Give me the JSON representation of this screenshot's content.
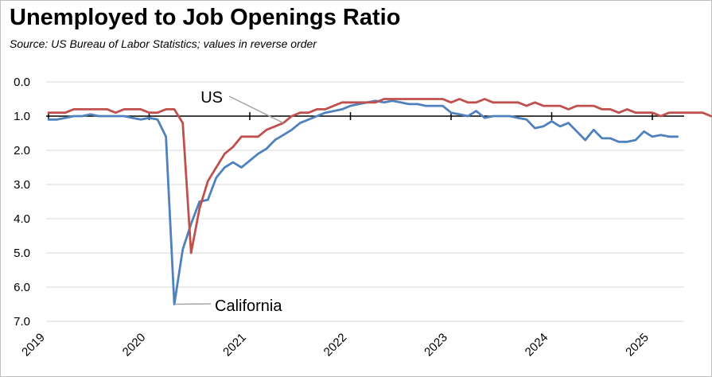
{
  "header": {
    "title": "Unemployed to Job Openings Ratio",
    "subtitle": "Source:  US Bureau of Labor Statistics; values in reverse order"
  },
  "chart_data": {
    "type": "line",
    "title": "Unemployed to Job Openings Ratio",
    "subtitle": "Source:  US Bureau of Labor Statistics; values in reverse order",
    "xlabel": "",
    "ylabel": "",
    "y_reversed": true,
    "ylim": [
      0,
      7
    ],
    "y_ticks": [
      "0.0",
      "1.0",
      "2.0",
      "3.0",
      "4.0",
      "5.0",
      "6.0",
      "7.0"
    ],
    "x_ticks": [
      "2019",
      "2020",
      "2021",
      "2022",
      "2023",
      "2024",
      "2025"
    ],
    "x_start": "2019-01",
    "x_interval": "month",
    "grid": true,
    "colors": {
      "US": "#c0504d",
      "California": "#4f81bd",
      "grid": "#d9d9d9",
      "axis": "#000000",
      "leader": "#a6a6a6"
    },
    "annotations": [
      {
        "text": "US",
        "series": "US",
        "point_index": 28
      },
      {
        "text": "California",
        "series": "California",
        "point_index": 15
      }
    ],
    "series": [
      {
        "name": "US",
        "values": [
          0.9,
          0.9,
          0.9,
          0.8,
          0.8,
          0.8,
          0.8,
          0.8,
          0.9,
          0.8,
          0.8,
          0.8,
          0.9,
          0.9,
          0.8,
          0.8,
          1.2,
          5.0,
          3.7,
          2.9,
          2.5,
          2.1,
          1.9,
          1.6,
          1.6,
          1.6,
          1.4,
          1.3,
          1.2,
          1.0,
          0.9,
          0.9,
          0.8,
          0.8,
          0.7,
          0.6,
          0.6,
          0.6,
          0.6,
          0.6,
          0.5,
          0.5,
          0.5,
          0.5,
          0.5,
          0.5,
          0.5,
          0.5,
          0.6,
          0.5,
          0.6,
          0.6,
          0.5,
          0.6,
          0.6,
          0.6,
          0.6,
          0.7,
          0.6,
          0.7,
          0.7,
          0.7,
          0.8,
          0.7,
          0.7,
          0.7,
          0.8,
          0.8,
          0.9,
          0.8,
          0.9,
          0.9,
          0.9,
          1.0,
          0.9,
          0.9,
          0.9,
          0.9,
          0.9,
          1.0
        ]
      },
      {
        "name": "California",
        "values": [
          1.1,
          1.1,
          1.05,
          1.0,
          1.0,
          0.95,
          1.0,
          1.0,
          1.0,
          1.0,
          1.05,
          1.1,
          1.05,
          1.1,
          1.6,
          6.5,
          4.9,
          4.15,
          3.5,
          3.45,
          2.8,
          2.5,
          2.35,
          2.5,
          2.3,
          2.1,
          1.95,
          1.7,
          1.55,
          1.4,
          1.2,
          1.1,
          1.0,
          0.9,
          0.85,
          0.8,
          0.7,
          0.65,
          0.6,
          0.55,
          0.6,
          0.55,
          0.6,
          0.65,
          0.65,
          0.7,
          0.7,
          0.7,
          0.9,
          0.95,
          1.0,
          0.85,
          1.05,
          1.0,
          1.0,
          1.0,
          1.05,
          1.1,
          1.35,
          1.3,
          1.15,
          1.3,
          1.2,
          1.45,
          1.7,
          1.4,
          1.65,
          1.65,
          1.75,
          1.75,
          1.7,
          1.45,
          1.6,
          1.55,
          1.6,
          1.6
        ]
      }
    ]
  }
}
